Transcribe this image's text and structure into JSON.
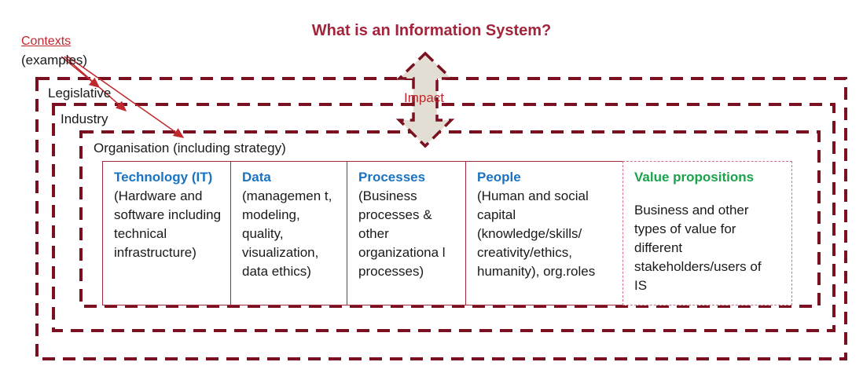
{
  "title": "What is an Information System?",
  "contexts_label": "Contexts",
  "examples_label": "(examples)",
  "impact_label": "Impact",
  "layers": {
    "legislative": "Legislative",
    "industry": "Industry",
    "organisation": "Organisation (including strategy)"
  },
  "components": [
    {
      "head": "Technology (IT)",
      "body": "(Hardware and software including technical infrastructure)",
      "head_color": "#1a73c1"
    },
    {
      "head": "Data",
      "body": "(managemen t, modeling, quality, visualization, data ethics)",
      "head_color": "#1a73c1"
    },
    {
      "head": "Processes",
      "body": "(Business processes & other organizationa l processes)",
      "head_color": "#1a73c1"
    },
    {
      "head": "People",
      "body": "(Human and social capital (knowledge/skills/ creativity/ethics, humanity), org.roles",
      "head_color": "#1a73c1"
    },
    {
      "head": "Value propositions",
      "body": "Business and other types of value for different stakeholders/users of IS",
      "head_color": "#1aa34a"
    }
  ],
  "colors": {
    "dark_red": "#7a1020",
    "title_red": "#a3243b",
    "context_red": "#c0282d",
    "arrow_fill": "#e3ded4",
    "blue": "#1a73c1",
    "green": "#1aa34a"
  }
}
